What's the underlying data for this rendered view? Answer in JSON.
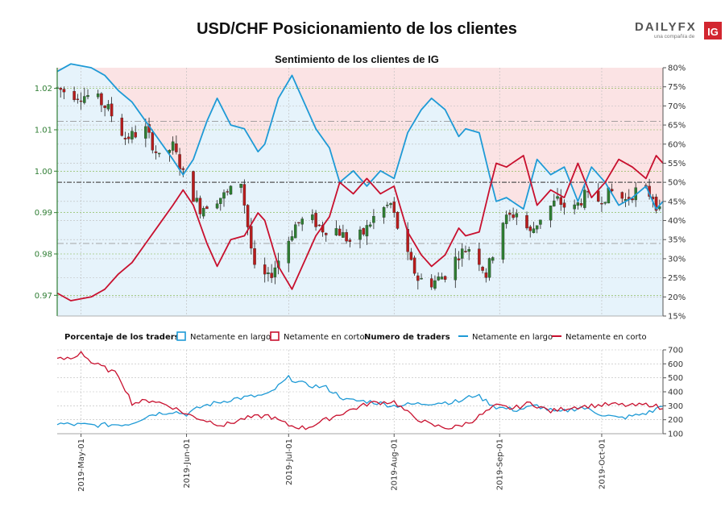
{
  "header": {
    "title": "USD/CHF Posicionamiento de los clientes",
    "logo_main": "DAILYFX",
    "logo_sub": "una compañía de",
    "logo_badge": "IG"
  },
  "colors": {
    "long": "#1e9ad6",
    "short": "#c8102e",
    "long_fill": "#e6f3fb",
    "short_fill": "#fbe3e4",
    "candle_up": "#2e7d32",
    "candle_down": "#b71c1c",
    "left_axis": "#2e7d32"
  },
  "chart_data": [
    {
      "type": "candlestick+line",
      "title": "Sentimiento de los clientes de IG",
      "x_range": [
        "2019-04-24",
        "2019-10-19"
      ],
      "x_ticks": [
        "2019-May-01",
        "2019-Jun-01",
        "2019-Jul-01",
        "2019-Aug-01",
        "2019-Sep-01",
        "2019-Oct-01"
      ],
      "x_tick_dates": [
        "2019-05-01",
        "2019-06-01",
        "2019-07-01",
        "2019-08-01",
        "2019-09-01",
        "2019-10-01"
      ],
      "left_axis": {
        "ylim": [
          0.965,
          1.025
        ],
        "ticks": [
          "0.97",
          "0.98",
          "0.99",
          "1.00",
          "1.01",
          "1.02"
        ],
        "tick_values": [
          0.97,
          0.98,
          0.99,
          1.0,
          1.01,
          1.02
        ]
      },
      "right_axis": {
        "ylim": [
          15,
          80
        ],
        "ticks": [
          "15%",
          "20%",
          "25%",
          "30%",
          "35%",
          "40%",
          "45%",
          "50%",
          "55%",
          "60%",
          "65%",
          "70%",
          "75%",
          "80%"
        ],
        "tick_values": [
          15,
          20,
          25,
          30,
          35,
          40,
          45,
          50,
          55,
          60,
          65,
          70,
          75,
          80
        ]
      },
      "reference_lines_pct": [
        34,
        50,
        66
      ],
      "net_long_pct_keypoints": [
        [
          "2019-04-24",
          79
        ],
        [
          "2019-04-28",
          81
        ],
        [
          "2019-05-04",
          80
        ],
        [
          "2019-05-08",
          78
        ],
        [
          "2019-05-12",
          74
        ],
        [
          "2019-05-16",
          71
        ],
        [
          "2019-05-20",
          66
        ],
        [
          "2019-05-24",
          61
        ],
        [
          "2019-05-28",
          56
        ],
        [
          "2019-05-31",
          52
        ],
        [
          "2019-06-03",
          56
        ],
        [
          "2019-06-07",
          66
        ],
        [
          "2019-06-10",
          72
        ],
        [
          "2019-06-14",
          65
        ],
        [
          "2019-06-18",
          64
        ],
        [
          "2019-06-22",
          58
        ],
        [
          "2019-06-24",
          60
        ],
        [
          "2019-06-28",
          72
        ],
        [
          "2019-07-02",
          78
        ],
        [
          "2019-07-05",
          72
        ],
        [
          "2019-07-09",
          64
        ],
        [
          "2019-07-13",
          59
        ],
        [
          "2019-07-16",
          50
        ],
        [
          "2019-07-20",
          53
        ],
        [
          "2019-07-24",
          49
        ],
        [
          "2019-07-28",
          53
        ],
        [
          "2019-08-01",
          51
        ],
        [
          "2019-08-05",
          63
        ],
        [
          "2019-08-09",
          69
        ],
        [
          "2019-08-12",
          72
        ],
        [
          "2019-08-16",
          69
        ],
        [
          "2019-08-20",
          62
        ],
        [
          "2019-08-22",
          64
        ],
        [
          "2019-08-26",
          63
        ],
        [
          "2019-08-29",
          52
        ],
        [
          "2019-08-31",
          45
        ],
        [
          "2019-09-03",
          46
        ],
        [
          "2019-09-08",
          43
        ],
        [
          "2019-09-12",
          56
        ],
        [
          "2019-09-16",
          52
        ],
        [
          "2019-09-20",
          54
        ],
        [
          "2019-09-24",
          45
        ],
        [
          "2019-09-28",
          54
        ],
        [
          "2019-10-02",
          50
        ],
        [
          "2019-10-06",
          44
        ],
        [
          "2019-10-10",
          46
        ],
        [
          "2019-10-14",
          49
        ],
        [
          "2019-10-17",
          43
        ],
        [
          "2019-10-19",
          45
        ]
      ],
      "net_short_pct_keypoints": [
        [
          "2019-04-24",
          21
        ],
        [
          "2019-04-28",
          19
        ],
        [
          "2019-05-04",
          20
        ],
        [
          "2019-05-08",
          22
        ],
        [
          "2019-05-12",
          26
        ],
        [
          "2019-05-16",
          29
        ],
        [
          "2019-05-20",
          34
        ],
        [
          "2019-05-24",
          39
        ],
        [
          "2019-05-28",
          44
        ],
        [
          "2019-05-31",
          48
        ],
        [
          "2019-06-03",
          44
        ],
        [
          "2019-06-07",
          34
        ],
        [
          "2019-06-10",
          28
        ],
        [
          "2019-06-14",
          35
        ],
        [
          "2019-06-18",
          36
        ],
        [
          "2019-06-22",
          42
        ],
        [
          "2019-06-24",
          40
        ],
        [
          "2019-06-28",
          28
        ],
        [
          "2019-07-02",
          22
        ],
        [
          "2019-07-05",
          28
        ],
        [
          "2019-07-09",
          36
        ],
        [
          "2019-07-13",
          41
        ],
        [
          "2019-07-16",
          50
        ],
        [
          "2019-07-20",
          47
        ],
        [
          "2019-07-24",
          51
        ],
        [
          "2019-07-28",
          47
        ],
        [
          "2019-08-01",
          49
        ],
        [
          "2019-08-05",
          37
        ],
        [
          "2019-08-09",
          31
        ],
        [
          "2019-08-12",
          28
        ],
        [
          "2019-08-16",
          31
        ],
        [
          "2019-08-20",
          38
        ],
        [
          "2019-08-22",
          36
        ],
        [
          "2019-08-26",
          37
        ],
        [
          "2019-08-29",
          48
        ],
        [
          "2019-08-31",
          55
        ],
        [
          "2019-09-03",
          54
        ],
        [
          "2019-09-08",
          57
        ],
        [
          "2019-09-12",
          44
        ],
        [
          "2019-09-16",
          48
        ],
        [
          "2019-09-20",
          46
        ],
        [
          "2019-09-24",
          55
        ],
        [
          "2019-09-28",
          46
        ],
        [
          "2019-10-02",
          50
        ],
        [
          "2019-10-06",
          56
        ],
        [
          "2019-10-10",
          54
        ],
        [
          "2019-10-14",
          51
        ],
        [
          "2019-10-17",
          57
        ],
        [
          "2019-10-19",
          55
        ]
      ],
      "price_keypoints": [
        [
          "2019-04-24",
          1.02
        ],
        [
          "2019-04-29",
          1.0185
        ],
        [
          "2019-05-05",
          1.018
        ],
        [
          "2019-05-09",
          1.015
        ],
        [
          "2019-05-14",
          1.008
        ],
        [
          "2019-05-20",
          1.01
        ],
        [
          "2019-05-24",
          1.003
        ],
        [
          "2019-05-28",
          1.006
        ],
        [
          "2019-06-01",
          0.997
        ],
        [
          "2019-06-05",
          0.991
        ],
        [
          "2019-06-09",
          0.993
        ],
        [
          "2019-06-13",
          0.9945
        ],
        [
          "2019-06-17",
          0.9975
        ],
        [
          "2019-06-21",
          0.976
        ],
        [
          "2019-06-25",
          0.974
        ],
        [
          "2019-06-29",
          0.98
        ],
        [
          "2019-07-03",
          0.987
        ],
        [
          "2019-07-07",
          0.989
        ],
        [
          "2019-07-11",
          0.986
        ],
        [
          "2019-07-15",
          0.986
        ],
        [
          "2019-07-19",
          0.983
        ],
        [
          "2019-07-23",
          0.985
        ],
        [
          "2019-07-27",
          0.99
        ],
        [
          "2019-07-31",
          0.992
        ],
        [
          "2019-08-04",
          0.981
        ],
        [
          "2019-08-08",
          0.974
        ],
        [
          "2019-08-12",
          0.973
        ],
        [
          "2019-08-16",
          0.975
        ],
        [
          "2019-08-20",
          0.98
        ],
        [
          "2019-08-24",
          0.982
        ],
        [
          "2019-08-28",
          0.975
        ],
        [
          "2019-09-02",
          0.988
        ],
        [
          "2019-09-06",
          0.99
        ],
        [
          "2019-09-10",
          0.985
        ],
        [
          "2019-09-14",
          0.99
        ],
        [
          "2019-09-18",
          0.993
        ],
        [
          "2019-09-22",
          0.99
        ],
        [
          "2019-09-26",
          0.994
        ],
        [
          "2019-09-30",
          0.993
        ],
        [
          "2019-10-04",
          0.995
        ],
        [
          "2019-10-08",
          0.993
        ],
        [
          "2019-10-12",
          0.996
        ],
        [
          "2019-10-16",
          0.994
        ],
        [
          "2019-10-19",
          0.988
        ]
      ]
    },
    {
      "type": "line",
      "title": "Numero de traders",
      "ylim": [
        100,
        700
      ],
      "ticks": [
        "100",
        "200",
        "300",
        "400",
        "500",
        "600",
        "700"
      ],
      "tick_values": [
        100,
        200,
        300,
        400,
        500,
        600,
        700
      ],
      "series": [
        {
          "name": "Netamente en largo",
          "keypoints": [
            [
              "2019-04-24",
              170
            ],
            [
              "2019-05-05",
              160
            ],
            [
              "2019-05-15",
              170
            ],
            [
              "2019-05-22",
              240
            ],
            [
              "2019-05-28",
              260
            ],
            [
              "2019-06-01",
              240
            ],
            [
              "2019-06-06",
              300
            ],
            [
              "2019-06-15",
              350
            ],
            [
              "2019-06-25",
              380
            ],
            [
              "2019-07-01",
              500
            ],
            [
              "2019-07-06",
              450
            ],
            [
              "2019-07-12",
              430
            ],
            [
              "2019-07-18",
              340
            ],
            [
              "2019-07-25",
              330
            ],
            [
              "2019-08-01",
              300
            ],
            [
              "2019-08-06",
              310
            ],
            [
              "2019-08-12",
              320
            ],
            [
              "2019-08-20",
              330
            ],
            [
              "2019-08-25",
              380
            ],
            [
              "2019-08-31",
              290
            ],
            [
              "2019-09-06",
              270
            ],
            [
              "2019-09-12",
              300
            ],
            [
              "2019-09-18",
              250
            ],
            [
              "2019-09-25",
              290
            ],
            [
              "2019-10-01",
              240
            ],
            [
              "2019-10-06",
              210
            ],
            [
              "2019-10-11",
              230
            ],
            [
              "2019-10-16",
              260
            ],
            [
              "2019-10-19",
              310
            ]
          ]
        },
        {
          "name": "Netamente en corto",
          "keypoints": [
            [
              "2019-04-24",
              630
            ],
            [
              "2019-04-29",
              640
            ],
            [
              "2019-05-01",
              690
            ],
            [
              "2019-05-04",
              610
            ],
            [
              "2019-05-08",
              570
            ],
            [
              "2019-05-12",
              520
            ],
            [
              "2019-05-16",
              320
            ],
            [
              "2019-05-22",
              340
            ],
            [
              "2019-05-28",
              290
            ],
            [
              "2019-06-01",
              240
            ],
            [
              "2019-06-06",
              200
            ],
            [
              "2019-06-12",
              160
            ],
            [
              "2019-06-18",
              210
            ],
            [
              "2019-06-25",
              230
            ],
            [
              "2019-07-01",
              160
            ],
            [
              "2019-07-06",
              140
            ],
            [
              "2019-07-12",
              200
            ],
            [
              "2019-07-18",
              260
            ],
            [
              "2019-07-25",
              320
            ],
            [
              "2019-08-01",
              330
            ],
            [
              "2019-08-06",
              230
            ],
            [
              "2019-08-12",
              160
            ],
            [
              "2019-08-18",
              140
            ],
            [
              "2019-08-23",
              180
            ],
            [
              "2019-08-27",
              240
            ],
            [
              "2019-08-31",
              300
            ],
            [
              "2019-09-05",
              280
            ],
            [
              "2019-09-10",
              320
            ],
            [
              "2019-09-16",
              260
            ],
            [
              "2019-09-22",
              290
            ],
            [
              "2019-09-28",
              300
            ],
            [
              "2019-10-04",
              310
            ],
            [
              "2019-10-10",
              300
            ],
            [
              "2019-10-16",
              310
            ],
            [
              "2019-10-19",
              270
            ]
          ]
        }
      ]
    }
  ],
  "legend": {
    "left_label": "Porcentaje de los traders",
    "left_long": "Netamente en largo",
    "left_short": "Netamente en corto",
    "right_label": "Numero de traders",
    "right_long": "Netamente en largo",
    "right_short": "Netamente en corto"
  }
}
